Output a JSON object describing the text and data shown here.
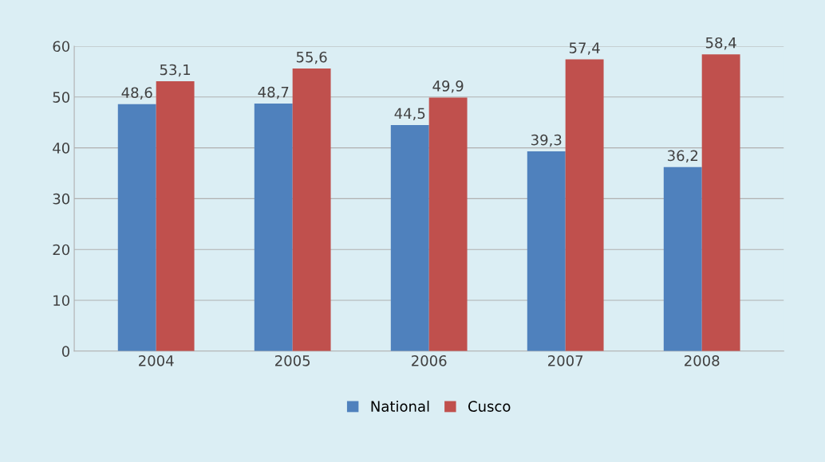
{
  "chart_data": {
    "type": "bar",
    "categories": [
      "2004",
      "2005",
      "2006",
      "2007",
      "2008"
    ],
    "series": [
      {
        "name": "National",
        "color": "#4f81bd",
        "values": [
          48.6,
          48.7,
          44.5,
          39.3,
          36.2
        ],
        "value_labels": [
          "48,6",
          "48,7",
          "44,5",
          "39,3",
          "36,2"
        ]
      },
      {
        "name": "Cusco",
        "color": "#c0504d",
        "values": [
          53.1,
          55.6,
          49.9,
          57.4,
          58.4
        ],
        "value_labels": [
          "53,1",
          "55,6",
          "49,9",
          "57,4",
          "58,4"
        ]
      }
    ],
    "ylim": [
      0,
      60
    ],
    "yticks": [
      0,
      10,
      20,
      30,
      40,
      50,
      60
    ],
    "grid": "y",
    "legend": "bottom"
  }
}
